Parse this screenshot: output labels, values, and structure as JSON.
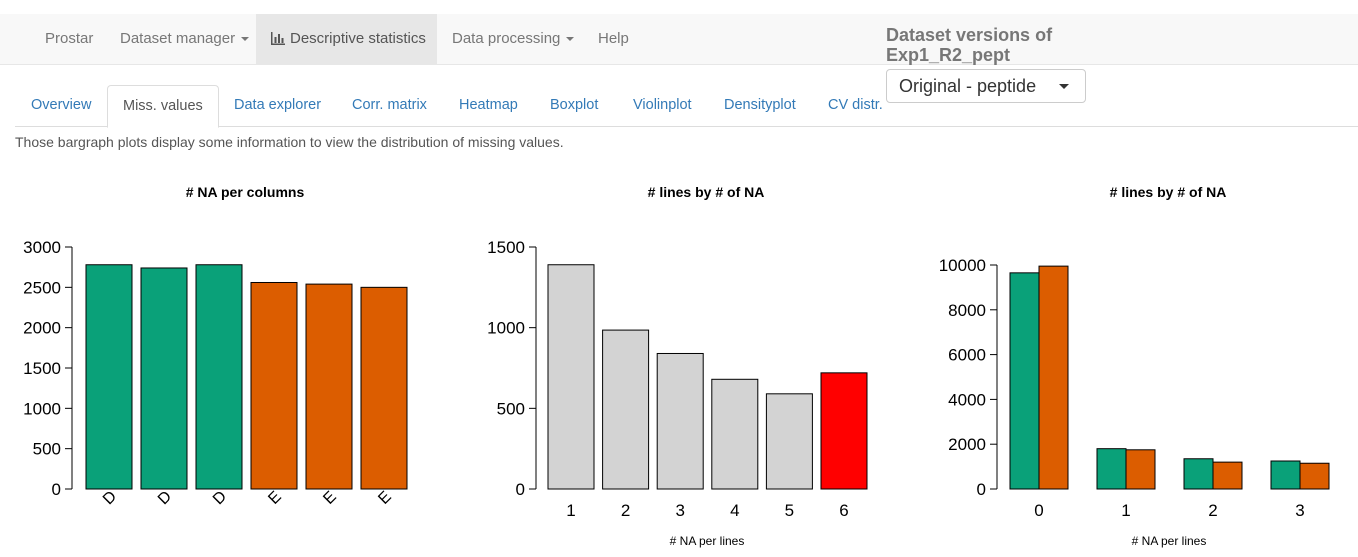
{
  "navbar": {
    "brand": "Prostar",
    "dataset_manager": "Dataset manager",
    "descriptive_statistics": "Descriptive statistics",
    "data_processing": "Data processing",
    "help": "Help"
  },
  "dataset_versions": {
    "label": "Dataset versions of Exp1_R2_pept",
    "selected": "Original - peptide"
  },
  "tabs": [
    "Overview",
    "Miss. values",
    "Data explorer",
    "Corr. matrix",
    "Heatmap",
    "Boxplot",
    "Violinplot",
    "Densityplot",
    "CV distr."
  ],
  "description": "Those bargraph plots display some information to view the distribution of missing values.",
  "colors": {
    "green": "#0aa179",
    "orange": "#dc5d00",
    "grey": "#d3d3d3",
    "red": "#ff0000"
  },
  "chart_data": [
    {
      "type": "bar",
      "title": "# NA per columns",
      "categories": [
        "D",
        "D",
        "D",
        "E",
        "E",
        "E"
      ],
      "values": [
        2780,
        2740,
        2780,
        2560,
        2540,
        2500
      ],
      "bar_colors": [
        "#0aa179",
        "#0aa179",
        "#0aa179",
        "#dc5d00",
        "#dc5d00",
        "#dc5d00"
      ],
      "ylim": [
        0,
        3000
      ],
      "yticks": [
        "0",
        "500",
        "1000",
        "1500",
        "2000",
        "2500",
        "3000"
      ],
      "xlabel": ""
    },
    {
      "type": "bar",
      "title": "# lines by # of NA",
      "categories": [
        "1",
        "2",
        "3",
        "4",
        "5",
        "6"
      ],
      "values": [
        1390,
        985,
        840,
        680,
        590,
        720
      ],
      "bar_colors": [
        "#d3d3d3",
        "#d3d3d3",
        "#d3d3d3",
        "#d3d3d3",
        "#d3d3d3",
        "#ff0000"
      ],
      "ylim": [
        0,
        1500
      ],
      "yticks": [
        "0",
        "500",
        "1000",
        "1500"
      ],
      "xlabel": "# NA per lines"
    },
    {
      "type": "bar",
      "title": "# lines by # of NA",
      "categories": [
        "0",
        "1",
        "2",
        "3"
      ],
      "series": [
        {
          "values": [
            9650,
            1800,
            1350,
            1250
          ],
          "color": "#0aa179"
        },
        {
          "values": [
            9950,
            1750,
            1200,
            1150
          ],
          "color": "#dc5d00"
        }
      ],
      "ylim": [
        0,
        10000
      ],
      "yticks": [
        "0",
        "2000",
        "4000",
        "6000",
        "8000",
        "10000"
      ],
      "xlabel": "# NA per lines"
    }
  ]
}
